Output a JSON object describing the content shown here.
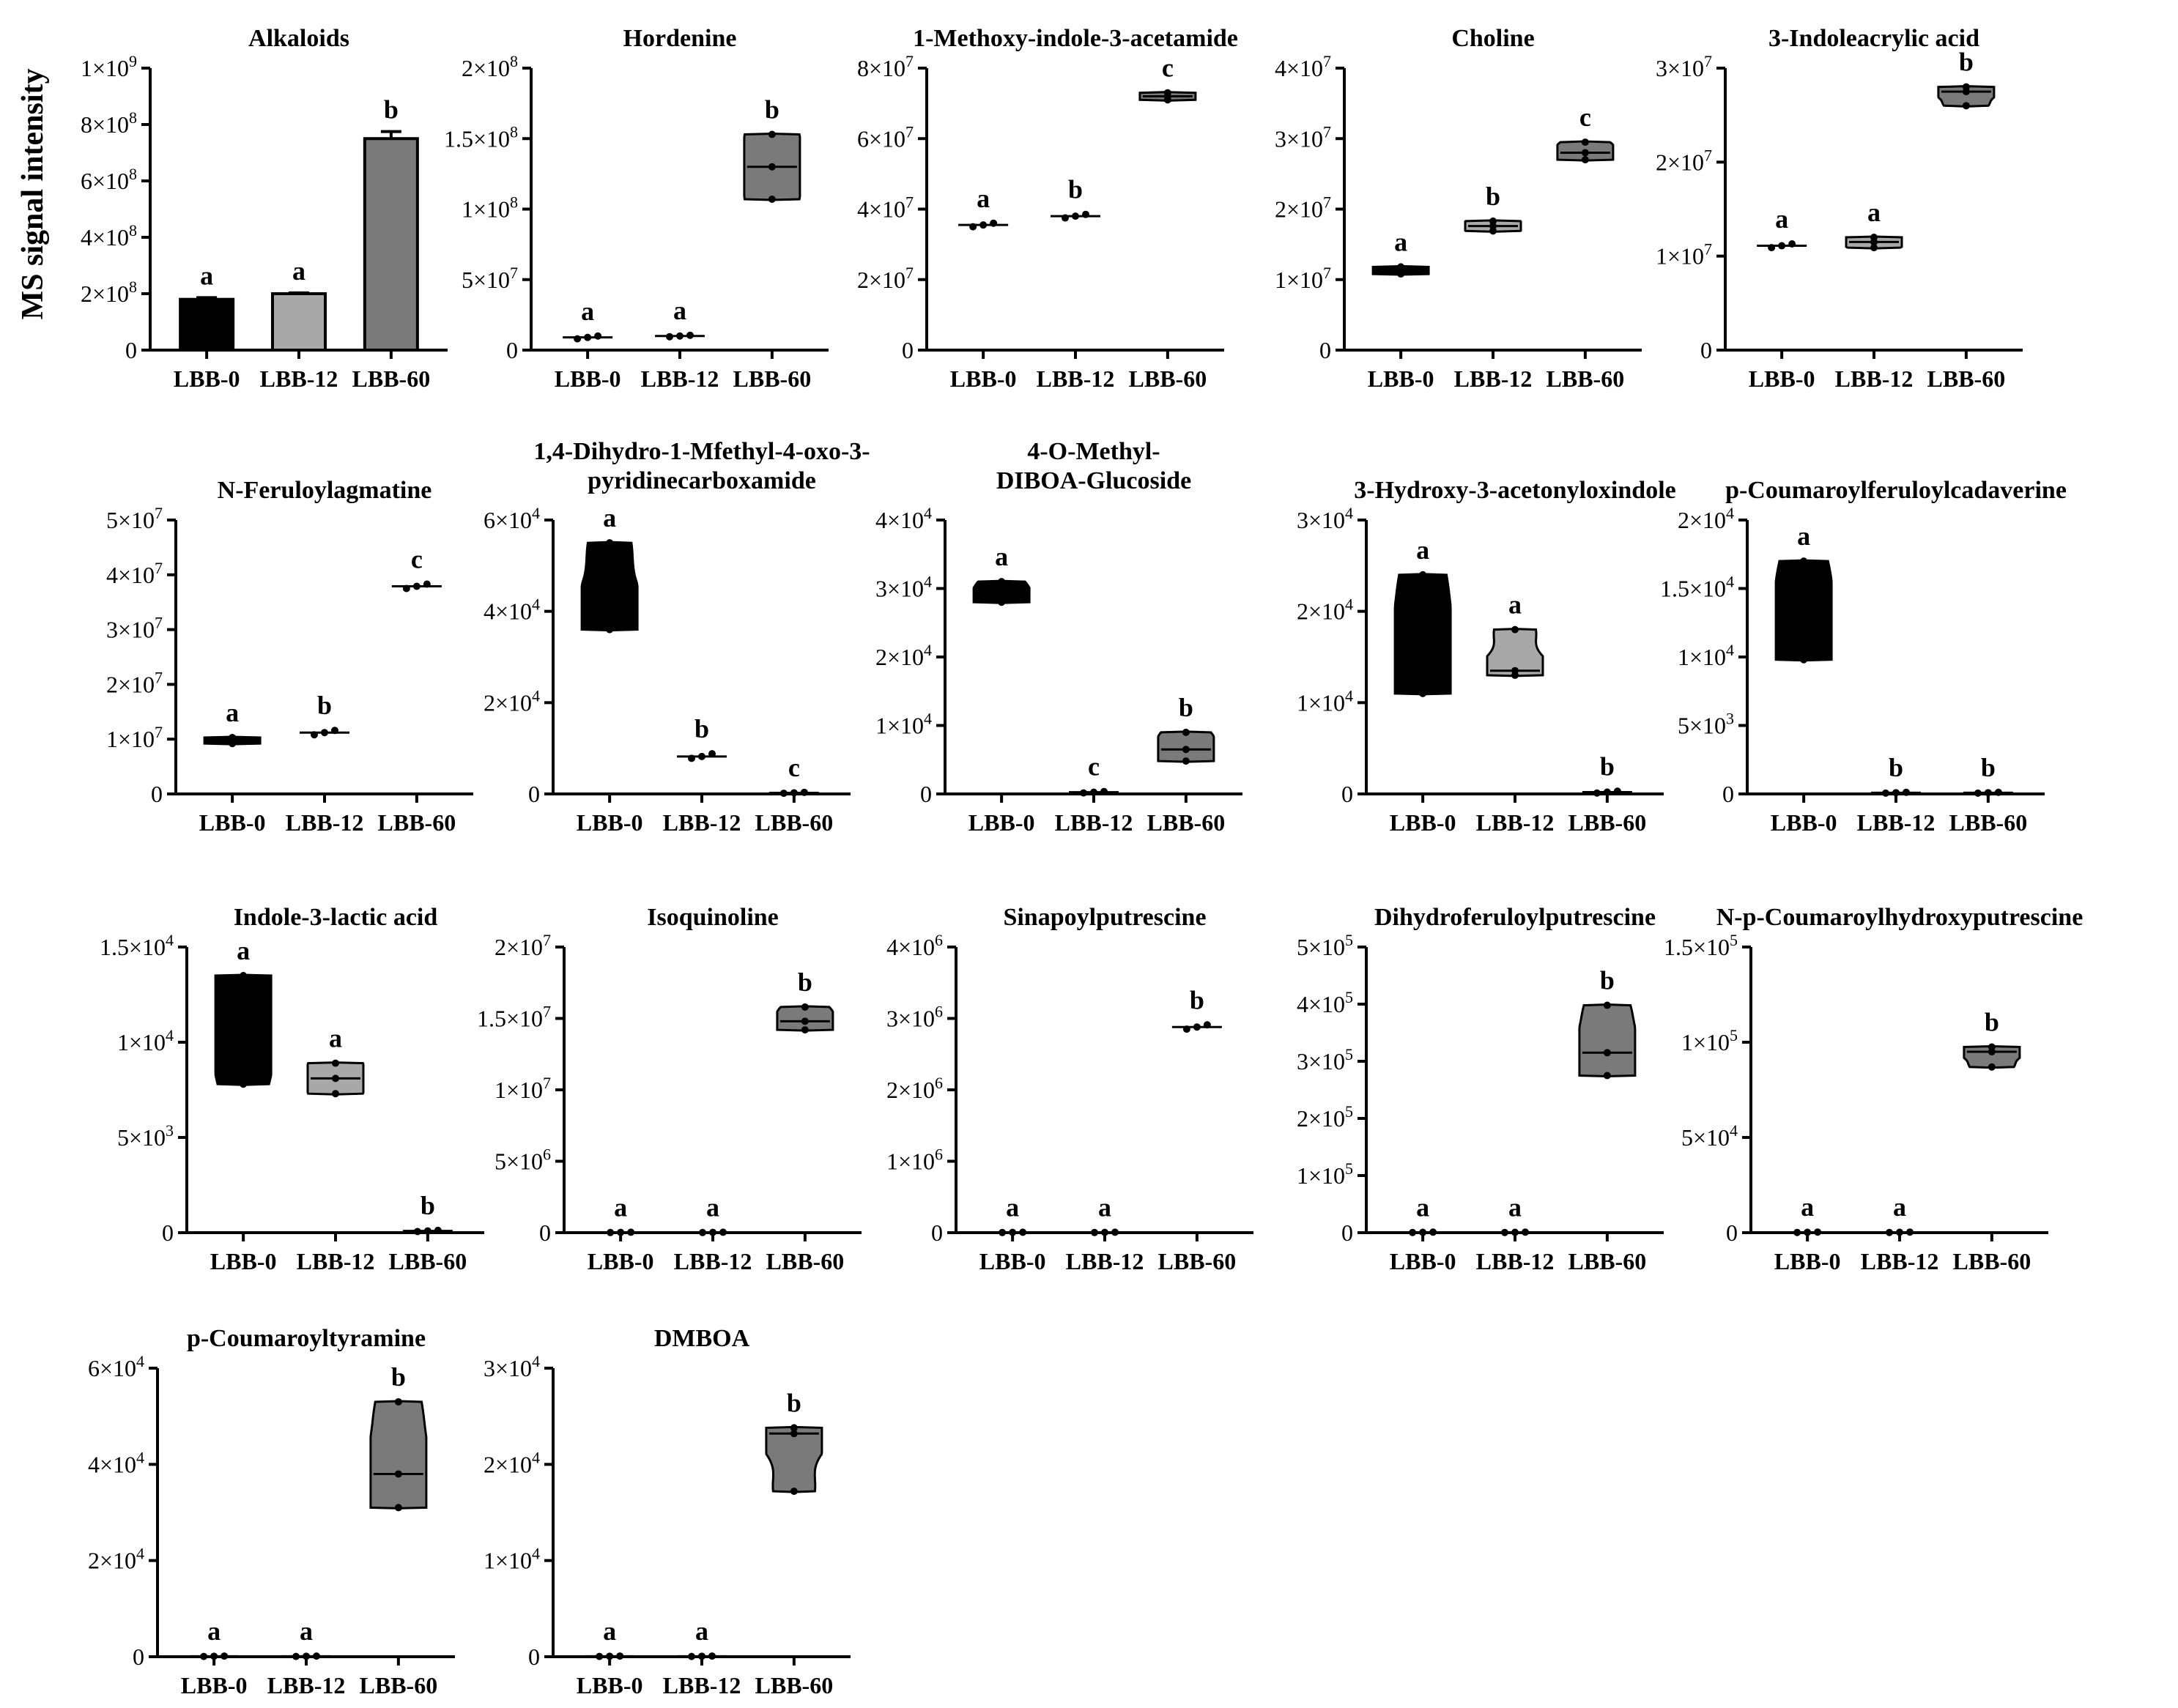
{
  "figure": {
    "ylabel": "MS signal intensity",
    "groups": [
      "LBB-0",
      "LBB-12",
      "LBB-60"
    ],
    "colors": {
      "g0": "#000000",
      "g12": "#a8a8a8",
      "g60": "#7a7a7a"
    }
  },
  "chart_data": [
    {
      "type": "bar",
      "title": "Alkaloids",
      "categories": [
        "LBB-0",
        "LBB-12",
        "LBB-60"
      ],
      "values": [
        180000000,
        200000000,
        750000000
      ],
      "errors": [
        6000000,
        3000000,
        25000000
      ],
      "letters": [
        "a",
        "a",
        "b"
      ],
      "ylim": [
        0,
        1000000000
      ],
      "ticks": [
        {
          "v": 0,
          "m": "0",
          "e": ""
        },
        {
          "v": 200000000,
          "m": "2×10",
          "e": "8"
        },
        {
          "v": 400000000,
          "m": "4×10",
          "e": "8"
        },
        {
          "v": 600000000,
          "m": "6×10",
          "e": "8"
        },
        {
          "v": 800000000,
          "m": "8×10",
          "e": "8"
        },
        {
          "v": 1000000000,
          "m": "1×10",
          "e": "9"
        }
      ]
    },
    {
      "type": "violin",
      "title": "Hordenine",
      "categories": [
        "LBB-0",
        "LBB-12",
        "LBB-60"
      ],
      "ylim": [
        0,
        200000000
      ],
      "ticks": [
        {
          "v": 0,
          "m": "0",
          "e": ""
        },
        {
          "v": 50000000,
          "m": "5×10",
          "e": "7"
        },
        {
          "v": 100000000,
          "m": "1×10",
          "e": "8"
        },
        {
          "v": 150000000,
          "m": "1.5×10",
          "e": "8"
        },
        {
          "v": 200000000,
          "m": "2×10",
          "e": "8"
        }
      ],
      "letters": [
        "a",
        "a",
        "b"
      ],
      "series": [
        {
          "name": "LBB-0",
          "points": [
            8000000,
            9000000,
            10000000
          ]
        },
        {
          "name": "LBB-12",
          "points": [
            9500000,
            10000000,
            10500000
          ]
        },
        {
          "name": "LBB-60",
          "points": [
            107000000,
            130000000,
            153000000
          ]
        }
      ]
    },
    {
      "type": "violin",
      "title": "1-Methoxy-indole-3-acetamide",
      "categories": [
        "LBB-0",
        "LBB-12",
        "LBB-60"
      ],
      "ylim": [
        0,
        80000000
      ],
      "ticks": [
        {
          "v": 0,
          "m": "0",
          "e": ""
        },
        {
          "v": 20000000,
          "m": "2×10",
          "e": "7"
        },
        {
          "v": 40000000,
          "m": "4×10",
          "e": "7"
        },
        {
          "v": 60000000,
          "m": "6×10",
          "e": "7"
        },
        {
          "v": 80000000,
          "m": "8×10",
          "e": "7"
        }
      ],
      "letters": [
        "a",
        "b",
        "c"
      ],
      "series": [
        {
          "name": "LBB-0",
          "points": [
            35000000,
            35500000,
            36000000
          ]
        },
        {
          "name": "LBB-12",
          "points": [
            37500000,
            38000000,
            38500000
          ]
        },
        {
          "name": "LBB-60",
          "points": [
            71000000,
            72000000,
            73000000
          ]
        }
      ]
    },
    {
      "type": "violin",
      "title": "Choline",
      "categories": [
        "LBB-0",
        "LBB-12",
        "LBB-60"
      ],
      "ylim": [
        0,
        40000000
      ],
      "ticks": [
        {
          "v": 0,
          "m": "0",
          "e": ""
        },
        {
          "v": 10000000,
          "m": "1×10",
          "e": "7"
        },
        {
          "v": 20000000,
          "m": "2×10",
          "e": "7"
        },
        {
          "v": 30000000,
          "m": "3×10",
          "e": "7"
        },
        {
          "v": 40000000,
          "m": "4×10",
          "e": "7"
        }
      ],
      "letters": [
        "a",
        "b",
        "c"
      ],
      "series": [
        {
          "name": "LBB-0",
          "points": [
            10800000,
            11300000,
            11800000
          ]
        },
        {
          "name": "LBB-12",
          "points": [
            16900000,
            17600000,
            18300000
          ]
        },
        {
          "name": "LBB-60",
          "points": [
            27000000,
            28000000,
            29500000
          ]
        }
      ]
    },
    {
      "type": "violin",
      "title": "3-Indoleacrylic acid",
      "categories": [
        "LBB-0",
        "LBB-12",
        "LBB-60"
      ],
      "ylim": [
        0,
        30000000
      ],
      "ticks": [
        {
          "v": 0,
          "m": "0",
          "e": ""
        },
        {
          "v": 10000000,
          "m": "1×10",
          "e": "7"
        },
        {
          "v": 20000000,
          "m": "2×10",
          "e": "7"
        },
        {
          "v": 30000000,
          "m": "3×10",
          "e": "7"
        }
      ],
      "letters": [
        "a",
        "a",
        "b"
      ],
      "series": [
        {
          "name": "LBB-0",
          "points": [
            10900000,
            11100000,
            11300000
          ]
        },
        {
          "name": "LBB-12",
          "points": [
            10900000,
            11500000,
            12000000
          ]
        },
        {
          "name": "LBB-60",
          "points": [
            26000000,
            27500000,
            28000000
          ]
        }
      ]
    },
    {
      "type": "violin",
      "title": "N-Feruloylagmatine",
      "categories": [
        "LBB-0",
        "LBB-12",
        "LBB-60"
      ],
      "ylim": [
        0,
        50000000
      ],
      "ticks": [
        {
          "v": 0,
          "m": "0",
          "e": ""
        },
        {
          "v": 10000000,
          "m": "1×10",
          "e": "7"
        },
        {
          "v": 20000000,
          "m": "2×10",
          "e": "7"
        },
        {
          "v": 30000000,
          "m": "3×10",
          "e": "7"
        },
        {
          "v": 40000000,
          "m": "4×10",
          "e": "7"
        },
        {
          "v": 50000000,
          "m": "5×10",
          "e": "7"
        }
      ],
      "letters": [
        "a",
        "b",
        "c"
      ],
      "series": [
        {
          "name": "LBB-0",
          "points": [
            9200000,
            9700000,
            10300000
          ]
        },
        {
          "name": "LBB-12",
          "points": [
            10800000,
            11200000,
            11600000
          ]
        },
        {
          "name": "LBB-60",
          "points": [
            37500000,
            37900000,
            38300000
          ]
        }
      ]
    },
    {
      "type": "violin",
      "title": "1,4-Dihydro-1-Mfethyl-4-oxo-3-pyridinecarboxamide",
      "title_lines": [
        "1,4-Dihydro-1-Mfethyl-4-oxo-3-",
        "pyridinecarboxamide"
      ],
      "categories": [
        "LBB-0",
        "LBB-12",
        "LBB-60"
      ],
      "ylim": [
        0,
        60000
      ],
      "ticks": [
        {
          "v": 0,
          "m": "0",
          "e": ""
        },
        {
          "v": 20000,
          "m": "2×10",
          "e": "4"
        },
        {
          "v": 40000,
          "m": "4×10",
          "e": "4"
        },
        {
          "v": 60000,
          "m": "6×10",
          "e": "4"
        }
      ],
      "letters": [
        "a",
        "b",
        "c"
      ],
      "series": [
        {
          "name": "LBB-0",
          "points": [
            36000,
            40000,
            55000
          ]
        },
        {
          "name": "LBB-12",
          "points": [
            7800,
            8200,
            8800
          ]
        },
        {
          "name": "LBB-60",
          "points": [
            150,
            250,
            350
          ]
        }
      ]
    },
    {
      "type": "violin",
      "title": "4-O-Methyl-DIBOA-Glucoside",
      "title_lines": [
        "4-O-Methyl-",
        "DIBOA-Glucoside"
      ],
      "categories": [
        "LBB-0",
        "LBB-12",
        "LBB-60"
      ],
      "ylim": [
        0,
        40000
      ],
      "ticks": [
        {
          "v": 0,
          "m": "0",
          "e": ""
        },
        {
          "v": 10000,
          "m": "1×10",
          "e": "4"
        },
        {
          "v": 20000,
          "m": "2×10",
          "e": "4"
        },
        {
          "v": 30000,
          "m": "3×10",
          "e": "4"
        },
        {
          "v": 40000,
          "m": "4×10",
          "e": "4"
        }
      ],
      "letters": [
        "a",
        "c",
        "b"
      ],
      "series": [
        {
          "name": "LBB-0",
          "points": [
            28000,
            29000,
            31000
          ]
        },
        {
          "name": "LBB-12",
          "points": [
            150,
            250,
            350
          ]
        },
        {
          "name": "LBB-60",
          "points": [
            4800,
            6500,
            9000
          ]
        }
      ]
    },
    {
      "type": "violin",
      "title": "3-Hydroxy-3-acetonyloxindole",
      "categories": [
        "LBB-0",
        "LBB-12",
        "LBB-60"
      ],
      "ylim": [
        0,
        30000
      ],
      "ticks": [
        {
          "v": 0,
          "m": "0",
          "e": ""
        },
        {
          "v": 10000,
          "m": "1×10",
          "e": "4"
        },
        {
          "v": 20000,
          "m": "2×10",
          "e": "4"
        },
        {
          "v": 30000,
          "m": "3×10",
          "e": "4"
        }
      ],
      "letters": [
        "a",
        "a",
        "b"
      ],
      "series": [
        {
          "name": "LBB-0",
          "points": [
            11000,
            15500,
            24000
          ]
        },
        {
          "name": "LBB-12",
          "points": [
            13000,
            13500,
            18000
          ]
        },
        {
          "name": "LBB-60",
          "points": [
            100,
            200,
            300
          ]
        }
      ]
    },
    {
      "type": "violin",
      "title": "p-Coumaroylferuloylcadaverine",
      "categories": [
        "LBB-0",
        "LBB-12",
        "LBB-60"
      ],
      "ylim": [
        0,
        20000
      ],
      "ticks": [
        {
          "v": 0,
          "m": "0",
          "e": ""
        },
        {
          "v": 5000,
          "m": "5×10",
          "e": "3"
        },
        {
          "v": 10000,
          "m": "1×10",
          "e": "4"
        },
        {
          "v": 15000,
          "m": "1.5×10",
          "e": "4"
        },
        {
          "v": 20000,
          "m": "2×10",
          "e": "4"
        }
      ],
      "letters": [
        "a",
        "b",
        "b"
      ],
      "series": [
        {
          "name": "LBB-0",
          "points": [
            9800,
            12500,
            17000
          ]
        },
        {
          "name": "LBB-12",
          "points": [
            60,
            90,
            120
          ]
        },
        {
          "name": "LBB-60",
          "points": [
            60,
            90,
            120
          ]
        }
      ]
    },
    {
      "type": "violin",
      "title": "Indole-3-lactic acid",
      "categories": [
        "LBB-0",
        "LBB-12",
        "LBB-60"
      ],
      "ylim": [
        0,
        15000
      ],
      "ticks": [
        {
          "v": 0,
          "m": "0",
          "e": ""
        },
        {
          "v": 5000,
          "m": "5×10",
          "e": "3"
        },
        {
          "v": 10000,
          "m": "1×10",
          "e": "4"
        },
        {
          "v": 15000,
          "m": "1.5×10",
          "e": "4"
        }
      ],
      "letters": [
        "a",
        "a",
        "b"
      ],
      "series": [
        {
          "name": "LBB-0",
          "points": [
            7800,
            11000,
            13500
          ]
        },
        {
          "name": "LBB-12",
          "points": [
            7300,
            8100,
            8900
          ]
        },
        {
          "name": "LBB-60",
          "points": [
            60,
            90,
            120
          ]
        }
      ]
    },
    {
      "type": "violin",
      "title": "Isoquinoline",
      "categories": [
        "LBB-0",
        "LBB-12",
        "LBB-60"
      ],
      "ylim": [
        0,
        20000000
      ],
      "ticks": [
        {
          "v": 0,
          "m": "0",
          "e": ""
        },
        {
          "v": 5000000,
          "m": "5×10",
          "e": "6"
        },
        {
          "v": 10000000,
          "m": "1×10",
          "e": "7"
        },
        {
          "v": 15000000,
          "m": "1.5×10",
          "e": "7"
        },
        {
          "v": 20000000,
          "m": "2×10",
          "e": "7"
        }
      ],
      "letters": [
        "a",
        "a",
        "b"
      ],
      "series": [
        {
          "name": "LBB-0",
          "points": [
            10000,
            20000,
            30000
          ]
        },
        {
          "name": "LBB-12",
          "points": [
            10000,
            20000,
            30000
          ]
        },
        {
          "name": "LBB-60",
          "points": [
            14200000,
            14800000,
            15800000
          ]
        }
      ]
    },
    {
      "type": "violin",
      "title": "Sinapoylputrescine",
      "categories": [
        "LBB-0",
        "LBB-12",
        "LBB-60"
      ],
      "ylim": [
        0,
        4000000
      ],
      "ticks": [
        {
          "v": 0,
          "m": "0",
          "e": ""
        },
        {
          "v": 1000000,
          "m": "1×10",
          "e": "6"
        },
        {
          "v": 2000000,
          "m": "2×10",
          "e": "6"
        },
        {
          "v": 3000000,
          "m": "3×10",
          "e": "6"
        },
        {
          "v": 4000000,
          "m": "4×10",
          "e": "6"
        }
      ],
      "letters": [
        "a",
        "a",
        "b"
      ],
      "series": [
        {
          "name": "LBB-0",
          "points": [
            2000,
            4000,
            6000
          ]
        },
        {
          "name": "LBB-12",
          "points": [
            2000,
            4000,
            6000
          ]
        },
        {
          "name": "LBB-60",
          "points": [
            2850000,
            2880000,
            2910000
          ]
        }
      ]
    },
    {
      "type": "violin",
      "title": "Dihydroferuloylputrescine",
      "categories": [
        "LBB-0",
        "LBB-12",
        "LBB-60"
      ],
      "ylim": [
        0,
        500000
      ],
      "ticks": [
        {
          "v": 0,
          "m": "0",
          "e": ""
        },
        {
          "v": 100000,
          "m": "1×10",
          "e": "5"
        },
        {
          "v": 200000,
          "m": "2×10",
          "e": "5"
        },
        {
          "v": 300000,
          "m": "3×10",
          "e": "5"
        },
        {
          "v": 400000,
          "m": "4×10",
          "e": "5"
        },
        {
          "v": 500000,
          "m": "5×10",
          "e": "5"
        }
      ],
      "letters": [
        "a",
        "a",
        "b"
      ],
      "series": [
        {
          "name": "LBB-0",
          "points": [
            300,
            600,
            900
          ]
        },
        {
          "name": "LBB-12",
          "points": [
            300,
            600,
            900
          ]
        },
        {
          "name": "LBB-60",
          "points": [
            275000,
            315000,
            398000
          ]
        }
      ]
    },
    {
      "type": "violin",
      "title": "N-p-Coumaroylhydroxyputrescine",
      "categories": [
        "LBB-0",
        "LBB-12",
        "LBB-60"
      ],
      "ylim": [
        0,
        150000
      ],
      "ticks": [
        {
          "v": 0,
          "m": "0",
          "e": ""
        },
        {
          "v": 50000,
          "m": "5×10",
          "e": "4"
        },
        {
          "v": 100000,
          "m": "1×10",
          "e": "5"
        },
        {
          "v": 150000,
          "m": "1.5×10",
          "e": "5"
        }
      ],
      "letters": [
        "a",
        "a",
        "b"
      ],
      "series": [
        {
          "name": "LBB-0",
          "points": [
            100,
            200,
            300
          ]
        },
        {
          "name": "LBB-12",
          "points": [
            100,
            200,
            300
          ]
        },
        {
          "name": "LBB-60",
          "points": [
            87000,
            95000,
            97500
          ]
        }
      ]
    },
    {
      "type": "violin",
      "title": "p-Coumaroyltyramine",
      "categories": [
        "LBB-0",
        "LBB-12",
        "LBB-60"
      ],
      "ylim": [
        0,
        60000
      ],
      "ticks": [
        {
          "v": 0,
          "m": "0",
          "e": ""
        },
        {
          "v": 20000,
          "m": "2×10",
          "e": "4"
        },
        {
          "v": 40000,
          "m": "4×10",
          "e": "4"
        },
        {
          "v": 60000,
          "m": "6×10",
          "e": "4"
        }
      ],
      "letters": [
        "a",
        "a",
        "b"
      ],
      "series": [
        {
          "name": "LBB-0",
          "points": [
            60,
            100,
            140
          ]
        },
        {
          "name": "LBB-12",
          "points": [
            60,
            100,
            140
          ]
        },
        {
          "name": "LBB-60",
          "points": [
            31000,
            38000,
            53000
          ]
        }
      ]
    },
    {
      "type": "violin",
      "title": "DMBOA",
      "categories": [
        "LBB-0",
        "LBB-12",
        "LBB-60"
      ],
      "ylim": [
        0,
        30000
      ],
      "ticks": [
        {
          "v": 0,
          "m": "0",
          "e": ""
        },
        {
          "v": 10000,
          "m": "1×10",
          "e": "4"
        },
        {
          "v": 20000,
          "m": "2×10",
          "e": "4"
        },
        {
          "v": 30000,
          "m": "3×10",
          "e": "4"
        }
      ],
      "letters": [
        "a",
        "a",
        "b"
      ],
      "series": [
        {
          "name": "LBB-0",
          "points": [
            30,
            50,
            70
          ]
        },
        {
          "name": "LBB-12",
          "points": [
            30,
            50,
            70
          ]
        },
        {
          "name": "LBB-60",
          "points": [
            17200,
            23200,
            23800
          ]
        }
      ]
    }
  ]
}
